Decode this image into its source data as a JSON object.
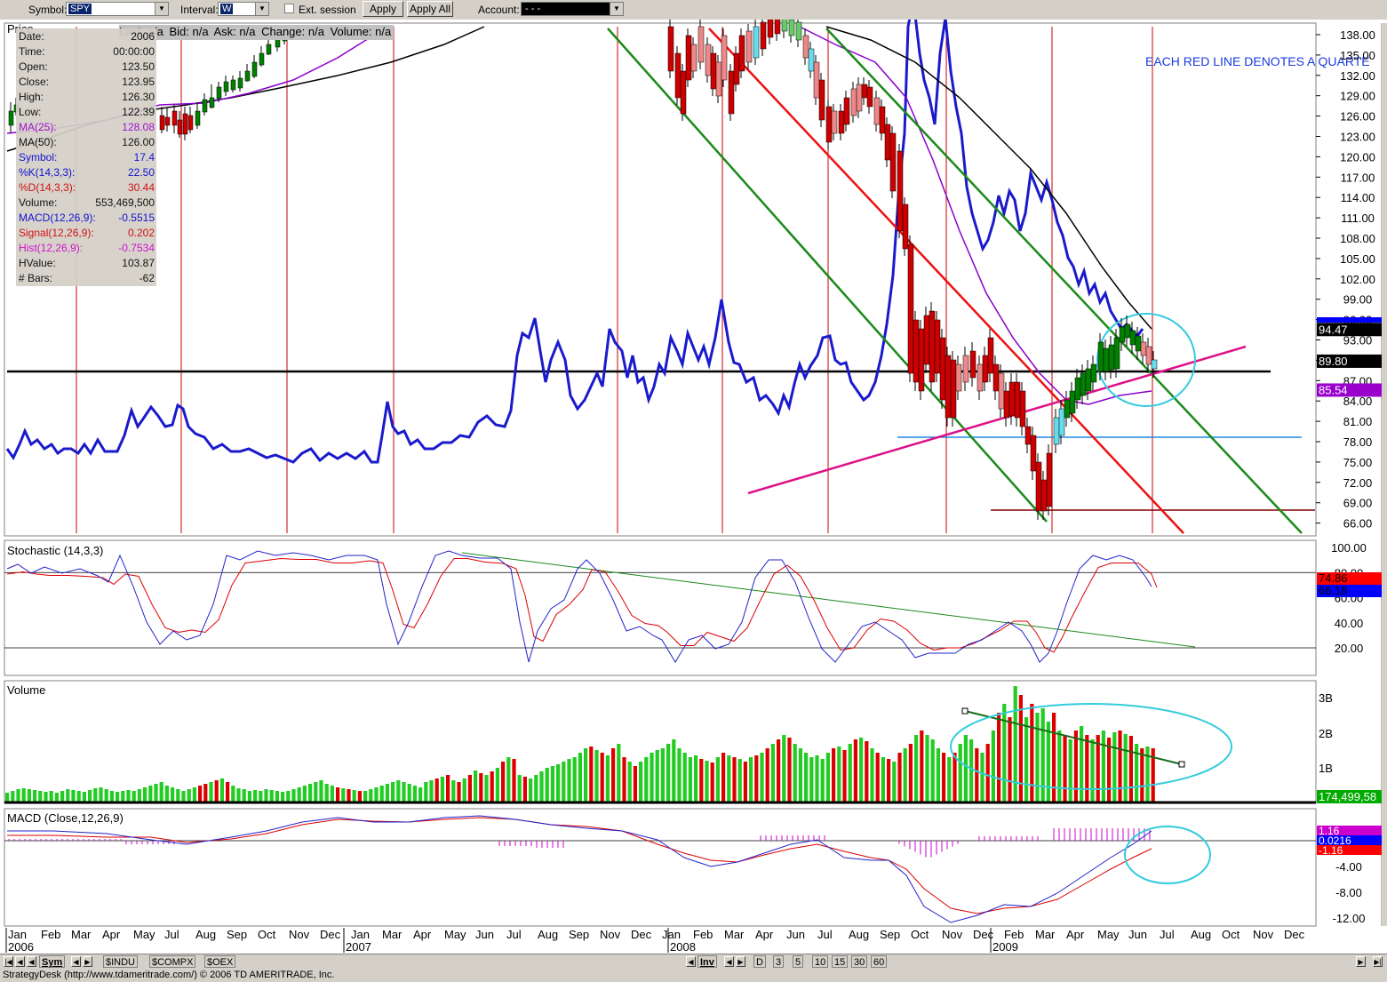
{
  "toolbar": {
    "symbol_label": "Symbol:",
    "symbol_value": "SPY",
    "interval_label": "Interval:",
    "interval_value": "W",
    "ext_session_label": "Ext. session",
    "apply_label": "Apply",
    "apply_all_label": "Apply All",
    "account_label": "Account:",
    "account_value": "- - -"
  },
  "quote_bar": {
    "last": "Last: n/a",
    "bid": "Bid: n/a",
    "ask": "Ask: n/a",
    "change": "Change: n/a",
    "volume": "Volume: n/a"
  },
  "data_window": [
    {
      "key": "Date:",
      "value": "2006",
      "color": "#000000"
    },
    {
      "key": "Time:",
      "value": "00:00:00",
      "color": "#000000"
    },
    {
      "key": "Open:",
      "value": "123.50",
      "color": "#000000"
    },
    {
      "key": "Close:",
      "value": "123.95",
      "color": "#000000"
    },
    {
      "key": "High:",
      "value": "126.30",
      "color": "#000000"
    },
    {
      "key": "Low:",
      "value": "122.39",
      "color": "#000000"
    },
    {
      "key": "MA(25):",
      "value": "128.08",
      "color": "#9900cc"
    },
    {
      "key": "MA(50):",
      "value": "126.00",
      "color": "#000000"
    },
    {
      "key": "Symbol:",
      "value": "17.4",
      "color": "#0000cc"
    },
    {
      "key": "%K(14,3,3):",
      "value": "22.50",
      "color": "#0000cc"
    },
    {
      "key": "%D(14,3,3):",
      "value": "30.44",
      "color": "#cc0000"
    },
    {
      "key": "Volume:",
      "value": "553,469,500",
      "color": "#000000"
    },
    {
      "key": "MACD(12,26,9):",
      "value": "-0.5515",
      "color": "#0000cc"
    },
    {
      "key": "Signal(12,26,9):",
      "value": "0.202",
      "color": "#cc0000"
    },
    {
      "key": "Hist(12,26,9):",
      "value": "-0.7534",
      "color": "#cc00cc"
    },
    {
      "key": "HValue:",
      "value": "103.87",
      "color": "#000000"
    },
    {
      "key": "# Bars:",
      "value": "-62",
      "color": "#000000"
    }
  ],
  "price_panel": {
    "title": "Price",
    "annotation": "EACH RED LINE DENOTES A QUARTE",
    "axis_ticks": [
      "138.00",
      "135.00",
      "132.00",
      "129.00",
      "126.00",
      "123.00",
      "120.00",
      "117.00",
      "114.00",
      "111.00",
      "108.00",
      "105.00",
      "102.00",
      "99.00",
      "96.00",
      "93.00",
      "90.00",
      "87.00",
      "84.00",
      "81.00",
      "78.00",
      "75.00",
      "72.00",
      "69.00",
      "66.00"
    ],
    "markers": [
      {
        "label": "94.47",
        "bg": "#000000",
        "fg": "#ffffff",
        "value": 94.47
      },
      {
        "label": "89.80",
        "bg": "#000000",
        "fg": "#ffffff",
        "value": 89.8
      },
      {
        "label": "85.54",
        "bg": "#9900cc",
        "fg": "#ffffff",
        "value": 85.54
      }
    ]
  },
  "stochastic_panel": {
    "title": "Stochastic (14,3,3)",
    "axis_ticks": [
      "100.00",
      "80.00",
      "60.00",
      "40.00",
      "20.00"
    ],
    "markers": [
      {
        "label": "74.86",
        "bg": "#ff0000",
        "fg": "#000000"
      },
      {
        "label": "66.18",
        "bg": "#0000ff",
        "fg": "#000000"
      }
    ]
  },
  "volume_panel": {
    "title": "Volume",
    "axis_ticks": [
      "3B",
      "2B",
      "1B"
    ],
    "marker": {
      "label": "174,499,58",
      "bg": "#00aa00",
      "fg": "#ffffff"
    }
  },
  "macd_panel": {
    "title": "MACD (Close,12,26,9)",
    "axis_ticks": [
      "4.00",
      "-4.00",
      "-8.00",
      "-12.00"
    ],
    "markers": [
      {
        "label": "1.16",
        "bg": "#cc00cc",
        "fg": "#ffffff"
      },
      {
        "label": "0.0216",
        "bg": "#0000ff",
        "fg": "#ffffff"
      },
      {
        "label": "-1.16",
        "bg": "#ff0000",
        "fg": "#ffffff"
      }
    ]
  },
  "x_axis": {
    "months": [
      "Jan",
      "Feb",
      "Mar",
      "Apr",
      "May",
      "Jul",
      "Aug",
      "Sep",
      "Oct",
      "Nov",
      "Dec",
      "Jan",
      "Mar",
      "Apr",
      "May",
      "Jun",
      "Jul",
      "Aug",
      "Sep",
      "Nov",
      "Dec",
      "Jan",
      "Feb",
      "Mar",
      "Apr",
      "Jun",
      "Jul",
      "Aug",
      "Sep",
      "Oct",
      "Nov",
      "Dec",
      "Feb",
      "Mar",
      "Apr",
      "May",
      "Jun",
      "Jul",
      "Aug",
      "Oct",
      "Nov",
      "Dec"
    ],
    "years": [
      "2006",
      "2007",
      "2008",
      "2009"
    ]
  },
  "bottom_tabs": {
    "sym": "Sym",
    "indices": [
      "$INDU",
      "$COMPX",
      "$OEX"
    ],
    "inv": "Inv",
    "ranges": [
      "D",
      "3",
      "5",
      "10",
      "15",
      "30",
      "60"
    ]
  },
  "status": "StrategyDesk (http://www.tdameritrade.com/) © 2006 TD AMERITRADE, Inc.",
  "colors": {
    "up_candle": "#008000",
    "down_candle": "#cc0000",
    "symbol_line": "#1a1acc",
    "ma25": "#8800cc",
    "ma50": "#000000",
    "trend_green": "#1a8a1a",
    "trend_red": "#ee1111",
    "trend_pink": "#dd1188",
    "highlight_ellipse": "#33ccdd",
    "quarter_lines": "#cc0000"
  }
}
